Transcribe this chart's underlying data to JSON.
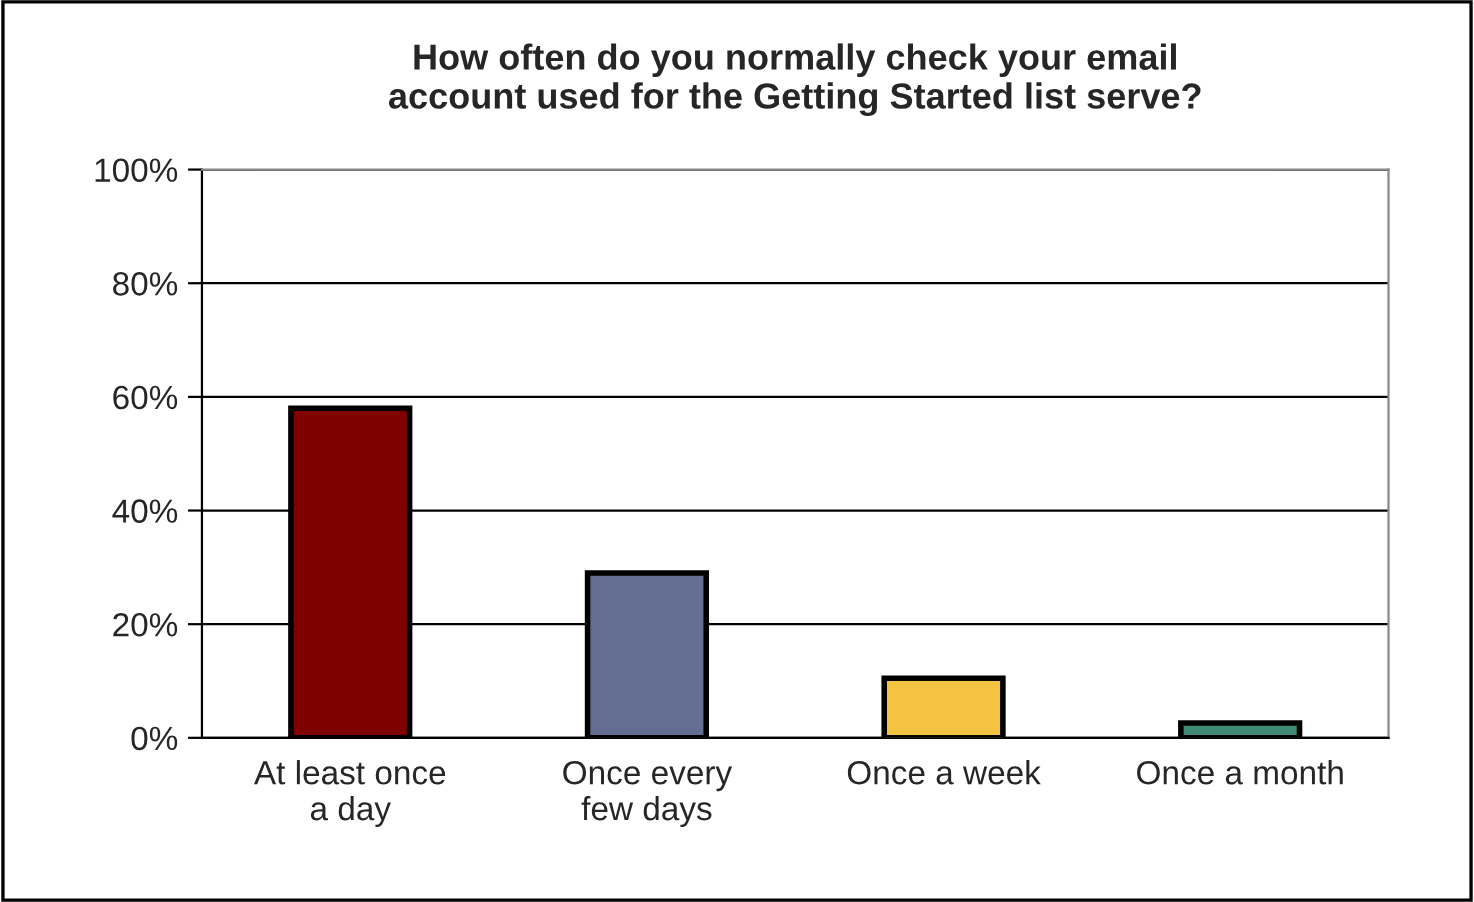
{
  "chart_data": {
    "type": "bar",
    "title": "How often do you normally check your email\naccount used for the Getting Started list serve?",
    "categories": [
      "At least once\na day",
      "Once every\nfew days",
      "Once a week",
      "Once a month"
    ],
    "values": [
      58,
      29,
      10.5,
      2.6
    ],
    "colors": [
      "#800000",
      "#636e92",
      "#f5c342",
      "#3e8a72"
    ],
    "ylim": [
      0,
      100
    ],
    "yticks": [
      {
        "value": 0,
        "label": "0%"
      },
      {
        "value": 20,
        "label": "20%"
      },
      {
        "value": 40,
        "label": "40%"
      },
      {
        "value": 60,
        "label": "60%"
      },
      {
        "value": 80,
        "label": "80%"
      },
      {
        "value": 100,
        "label": "100%"
      }
    ],
    "grid": "y",
    "legend": false
  }
}
